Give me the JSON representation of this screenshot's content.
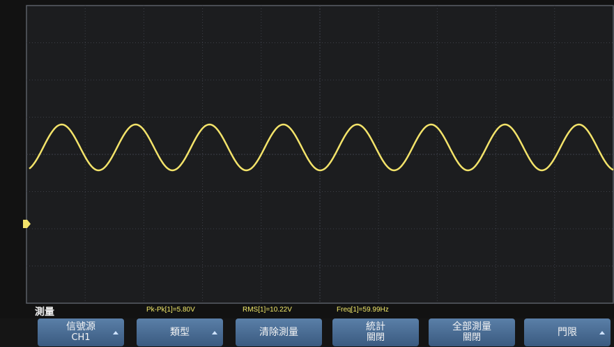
{
  "menu": {
    "title": "測量",
    "readouts": [
      "Pk-Pk[1]=5.80V",
      "RMS[1]=10.22V",
      "Freq[1]=59.99Hz"
    ],
    "buttons": [
      {
        "label": "信號源",
        "value": "CH1"
      },
      {
        "label": "類型"
      },
      {
        "label": "清除測量"
      },
      {
        "label": "統計",
        "value": "關閉"
      },
      {
        "label": "全部測量",
        "value": "關閉"
      },
      {
        "label": "門限"
      }
    ]
  }
}
